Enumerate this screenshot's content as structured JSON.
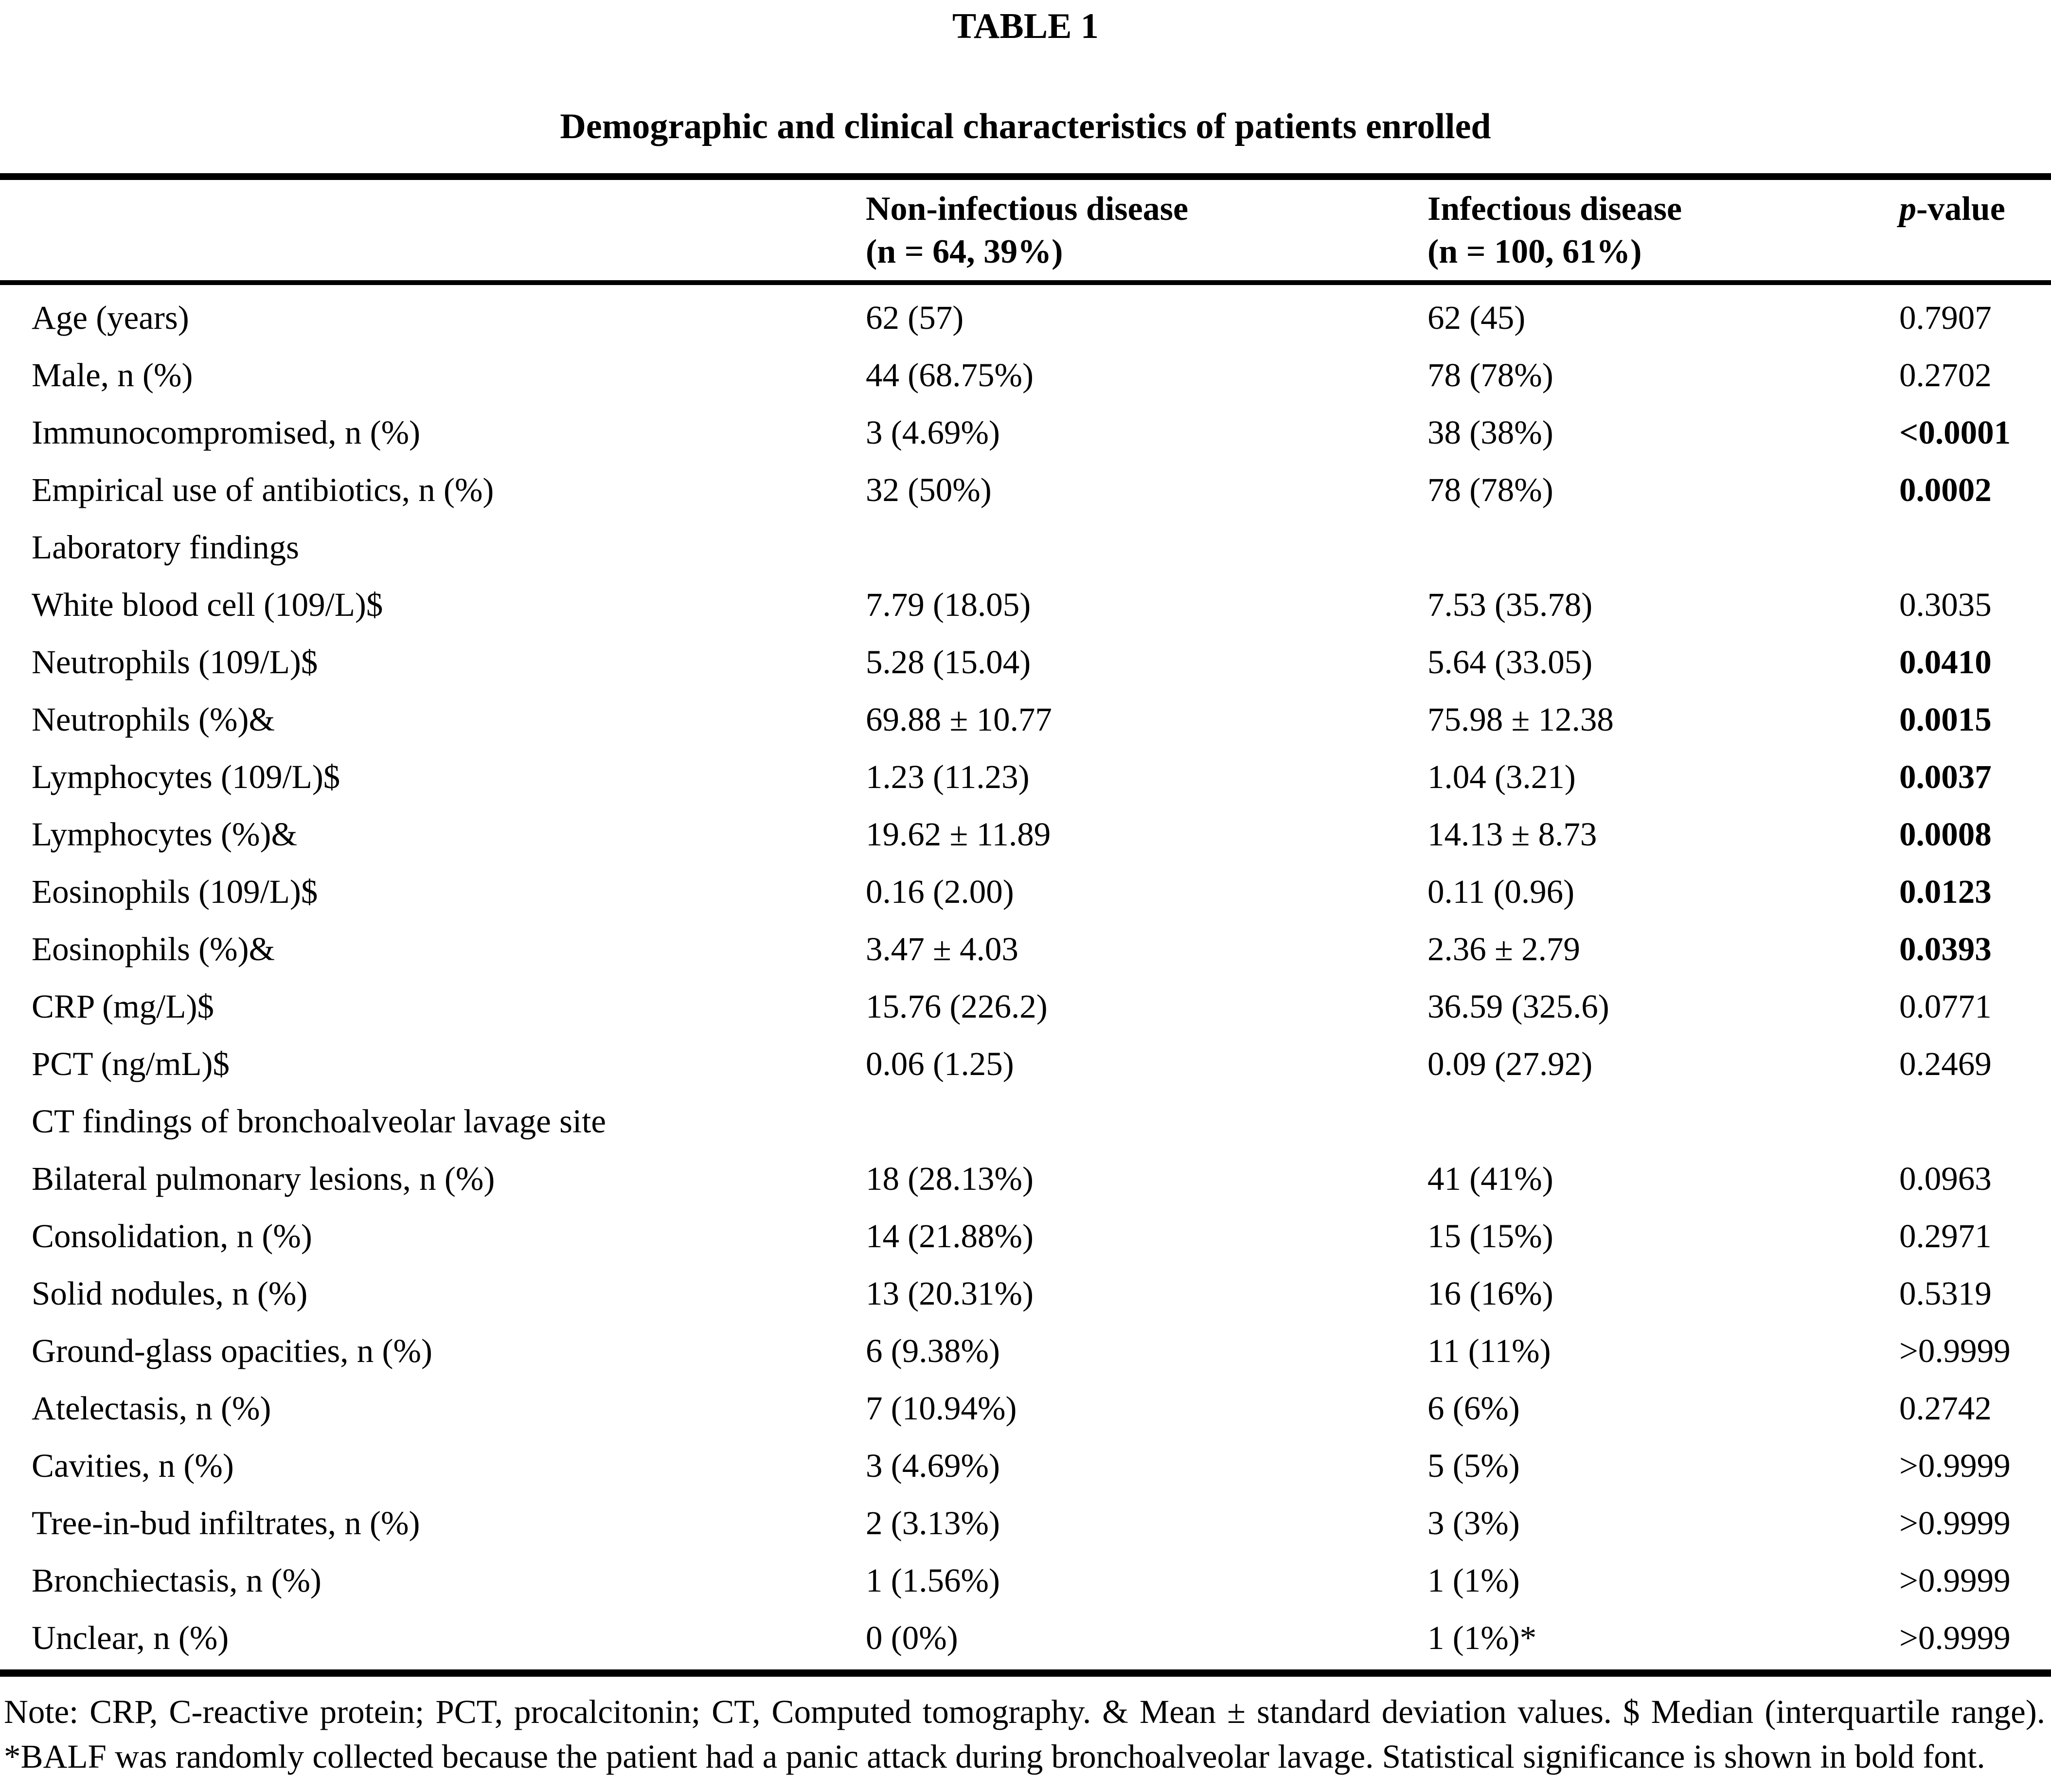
{
  "title": "TABLE 1",
  "subtitle": "Demographic and clinical characteristics of patients enrolled",
  "table": {
    "header": {
      "non_infectious_line1": "Non-infectious disease",
      "non_infectious_line2": "(n = 64, 39%)",
      "infectious_line1": "Infectious disease",
      "infectious_line2": "(n = 100, 61%)",
      "p_italic": "p",
      "p_rest": "-value"
    },
    "rows": [
      {
        "label": "Age (years)",
        "non_infectious": "62 (57)",
        "infectious": "62 (45)",
        "p": "0.7907",
        "p_bold": false,
        "section": false
      },
      {
        "label": "Male, n (%)",
        "non_infectious": "44 (68.75%)",
        "infectious": "78 (78%)",
        "p": "0.2702",
        "p_bold": false,
        "section": false
      },
      {
        "label": "Immunocompromised, n (%)",
        "non_infectious": "3 (4.69%)",
        "infectious": "38 (38%)",
        "p": "<0.0001",
        "p_bold": true,
        "section": false
      },
      {
        "label": "Empirical use of antibiotics, n (%)",
        "non_infectious": "32 (50%)",
        "infectious": "78 (78%)",
        "p": "0.0002",
        "p_bold": true,
        "section": false
      },
      {
        "label": "Laboratory findings",
        "non_infectious": "",
        "infectious": "",
        "p": "",
        "p_bold": false,
        "section": true
      },
      {
        "label": "White blood cell (109/L)$",
        "non_infectious": "7.79 (18.05)",
        "infectious": "7.53 (35.78)",
        "p": "0.3035",
        "p_bold": false,
        "section": false
      },
      {
        "label": "Neutrophils (109/L)$",
        "non_infectious": "5.28 (15.04)",
        "infectious": "5.64 (33.05)",
        "p": "0.0410",
        "p_bold": true,
        "section": false
      },
      {
        "label": "Neutrophils (%)&",
        "non_infectious": "69.88 ± 10.77",
        "infectious": "75.98 ± 12.38",
        "p": "0.0015",
        "p_bold": true,
        "section": false
      },
      {
        "label": "Lymphocytes (109/L)$",
        "non_infectious": "1.23 (11.23)",
        "infectious": "1.04 (3.21)",
        "p": "0.0037",
        "p_bold": true,
        "section": false
      },
      {
        "label": "Lymphocytes (%)&",
        "non_infectious": "19.62 ± 11.89",
        "infectious": "14.13 ± 8.73",
        "p": "0.0008",
        "p_bold": true,
        "section": false
      },
      {
        "label": "Eosinophils (109/L)$",
        "non_infectious": "0.16 (2.00)",
        "infectious": "0.11 (0.96)",
        "p": "0.0123",
        "p_bold": true,
        "section": false
      },
      {
        "label": "Eosinophils (%)&",
        "non_infectious": "3.47 ± 4.03",
        "infectious": "2.36 ± 2.79",
        "p": "0.0393",
        "p_bold": true,
        "section": false
      },
      {
        "label": "CRP (mg/L)$",
        "non_infectious": "15.76 (226.2)",
        "infectious": "36.59 (325.6)",
        "p": "0.0771",
        "p_bold": false,
        "section": false
      },
      {
        "label": "PCT (ng/mL)$",
        "non_infectious": "0.06 (1.25)",
        "infectious": "0.09 (27.92)",
        "p": "0.2469",
        "p_bold": false,
        "section": false
      },
      {
        "label": "CT findings of bronchoalveolar lavage site",
        "non_infectious": "",
        "infectious": "",
        "p": "",
        "p_bold": false,
        "section": true
      },
      {
        "label": "Bilateral pulmonary lesions, n (%)",
        "non_infectious": "18 (28.13%)",
        "infectious": "41 (41%)",
        "p": "0.0963",
        "p_bold": false,
        "section": false
      },
      {
        "label": "Consolidation, n (%)",
        "non_infectious": "14 (21.88%)",
        "infectious": "15 (15%)",
        "p": "0.2971",
        "p_bold": false,
        "section": false
      },
      {
        "label": "Solid nodules, n (%)",
        "non_infectious": "13 (20.31%)",
        "infectious": "16 (16%)",
        "p": "0.5319",
        "p_bold": false,
        "section": false
      },
      {
        "label": "Ground-glass opacities, n (%)",
        "non_infectious": "6 (9.38%)",
        "infectious": "11 (11%)",
        "p": ">0.9999",
        "p_bold": false,
        "section": false
      },
      {
        "label": "Atelectasis, n (%)",
        "non_infectious": "7 (10.94%)",
        "infectious": "6 (6%)",
        "p": "0.2742",
        "p_bold": false,
        "section": false
      },
      {
        "label": "Cavities, n (%)",
        "non_infectious": "3 (4.69%)",
        "infectious": "5 (5%)",
        "p": ">0.9999",
        "p_bold": false,
        "section": false
      },
      {
        "label": "Tree-in-bud infiltrates, n (%)",
        "non_infectious": "2 (3.13%)",
        "infectious": "3 (3%)",
        "p": ">0.9999",
        "p_bold": false,
        "section": false
      },
      {
        "label": "Bronchiectasis, n (%)",
        "non_infectious": "1 (1.56%)",
        "infectious": "1 (1%)",
        "p": ">0.9999",
        "p_bold": false,
        "section": false
      },
      {
        "label": "Unclear, n (%)",
        "non_infectious": "0 (0%)",
        "infectious": "1 (1%)*",
        "p": ">0.9999",
        "p_bold": false,
        "section": false
      }
    ]
  },
  "footnote": "Note: CRP, C-reactive protein; PCT, procalcitonin; CT, Computed tomography. & Mean ± standard deviation values. $ Median (interquartile range). *BALF was randomly collected because the patient had a panic attack during bronchoalveolar lavage. Statistical significance is shown in bold font."
}
